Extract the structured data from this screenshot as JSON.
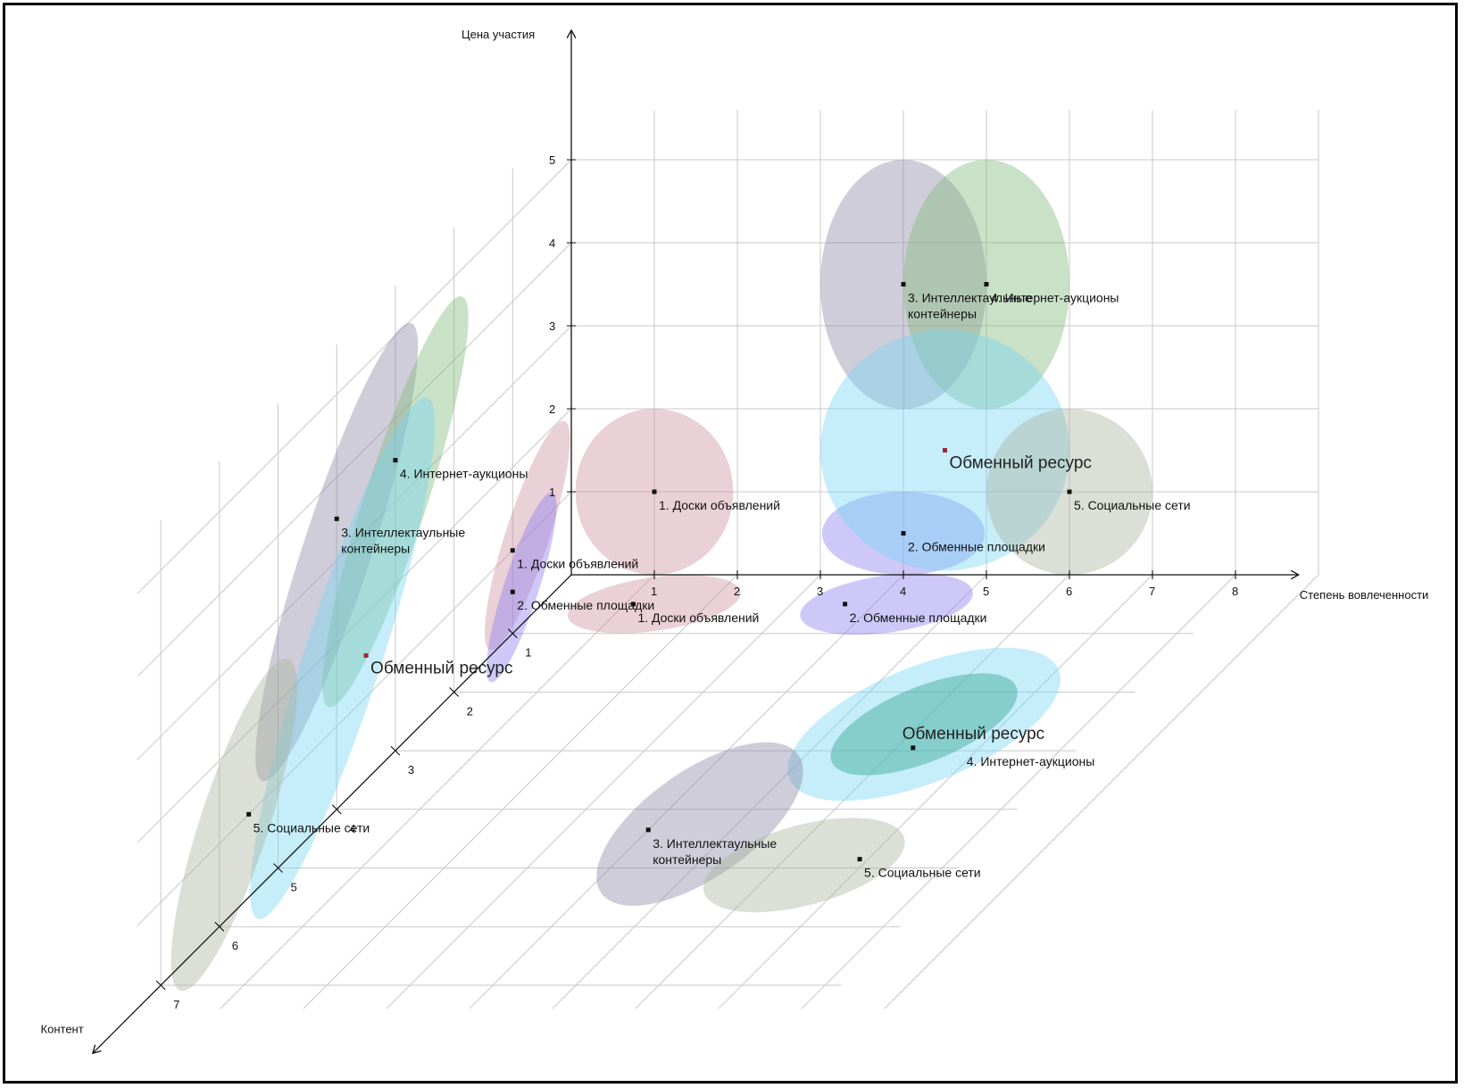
{
  "chart_data": {
    "type": "scatter",
    "title": "",
    "axes": {
      "x": {
        "label": "Степень  вовлеченности",
        "ticks": [
          "1",
          "2",
          "3",
          "4",
          "5",
          "6",
          "7",
          "8"
        ],
        "range": [
          0,
          8
        ]
      },
      "y": {
        "label": "Цена участия",
        "ticks": [
          "1",
          "2",
          "3",
          "4",
          "5"
        ],
        "range": [
          0,
          5
        ]
      },
      "z": {
        "label": "Контент",
        "ticks": [
          "1",
          "2",
          "3",
          "4",
          "5",
          "6",
          "7"
        ],
        "range": [
          0,
          7
        ]
      }
    },
    "grid": true,
    "projections": {
      "front_xy": [
        {
          "label": "1. Доски объявлений",
          "x": 1,
          "y": 1,
          "color": "#cc8fa0",
          "rx": 0.95,
          "ry": 1.0
        },
        {
          "label": "2. Обменные площадки",
          "x": 4,
          "y": 0.5,
          "color": "#8a7df0",
          "rx": 0.98,
          "ry": 0.5
        },
        {
          "label": "3. Интеллектаульные\nконтейнеры",
          "x": 4,
          "y": 3.5,
          "color": "#8e88a8",
          "rx": 1.0,
          "ry": 1.5
        },
        {
          "label": "4. Интернет-аукционы",
          "x": 5,
          "y": 3.5,
          "color": "#7fba7a",
          "rx": 1.0,
          "ry": 1.5
        },
        {
          "label": "Обменный ресурс",
          "x": 4.5,
          "y": 1.5,
          "color": "#75d4f4",
          "rx": 1.5,
          "ry": 1.45,
          "big": true
        },
        {
          "label": "5. Социальные сети",
          "x": 6,
          "y": 1,
          "color": "#aab39a",
          "rx": 1.0,
          "ry": 1.0
        }
      ],
      "side_zy": [
        {
          "label": "1. Доски объявлений",
          "z": 1,
          "y": 1
        },
        {
          "label": "2. Обменные площадки",
          "z": 1,
          "y": 0.5
        },
        {
          "label": "3. Интеллектаульные\nконтейнеры",
          "z": 4,
          "y": 3.5
        },
        {
          "label": "4. Интернет-аукционы",
          "z": 3,
          "y": 3.5
        },
        {
          "label": "Обменный ресурс",
          "z": 3.5,
          "y": 1.5,
          "big": true
        },
        {
          "label": "5. Социальные сети",
          "z": 5.5,
          "y": 1
        }
      ],
      "floor_xz": [
        {
          "label": "1. Доски объявлений",
          "x": 1.5,
          "z": 1.5
        },
        {
          "label": "2. Обменные площадки",
          "x": 4.5,
          "z": 1.5
        },
        {
          "label": "3. Интеллектаульные\nконтейнеры",
          "x": 4,
          "z": 5
        },
        {
          "label": "4. Интернет-аукционы",
          "x": 5.5,
          "z": 3.5
        },
        {
          "label": "Обменный ресурс",
          "x": 5.5,
          "z": 3.5,
          "big": true
        },
        {
          "label": "5. Социальные сети",
          "x": 7,
          "z": 5
        }
      ]
    }
  }
}
